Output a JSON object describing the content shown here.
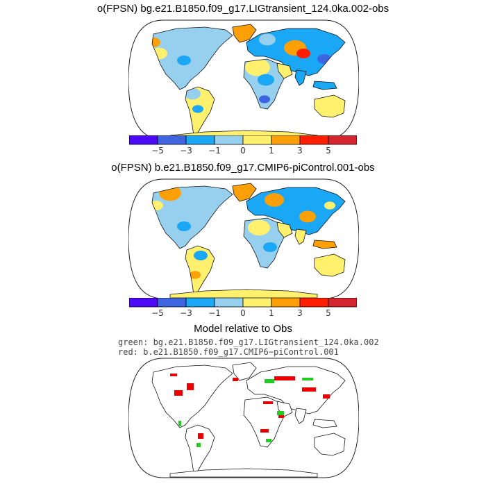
{
  "panels": [
    {
      "title": "o(FPSN) bg.e21.B1850.f09_g17.LIGtransient_124.0ka.002-obs",
      "variant": "lig"
    },
    {
      "title": "o(FPSN) b.e21.B1850.f09_g17.CMIP6-piControl.001-obs",
      "variant": "pi"
    }
  ],
  "colorbar": {
    "colors": [
      "#4b0af5",
      "#3e64e0",
      "#1aa7f5",
      "#97cfee",
      "#fff06e",
      "#fda007",
      "#ff1e00",
      "#d2252d"
    ],
    "tick_labels": [
      "−5",
      "−3",
      "−1",
      "0",
      "1",
      "3",
      "5"
    ]
  },
  "comparison": {
    "title": "Model relative to Obs",
    "green_label": "green: bg.e21.B1850.f09_g17.LIGtransient_124.0ka.002",
    "red_label": "red: b.e21.B1850.f09_g17.CMIP6−piControl.001",
    "green_color": "#22cc22",
    "red_color": "#e80000"
  }
}
